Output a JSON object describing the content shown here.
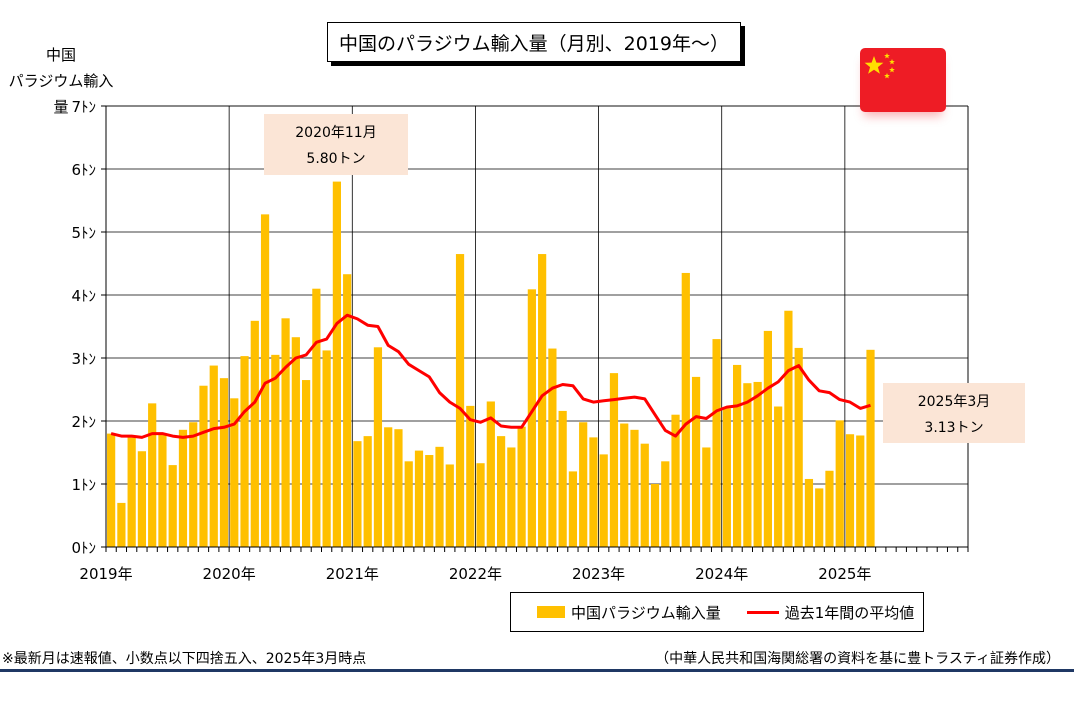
{
  "title": "中国のパラジウム輸入量（月別、2019年～）",
  "y_unit_line1": "中国",
  "y_unit_line2": "パラジウム輸入量",
  "callouts": {
    "peak": {
      "line1": "2020年11月",
      "line2": "5.80トン"
    },
    "latest": {
      "line1": "2025年3月",
      "line2": "3.13トン"
    }
  },
  "legend": {
    "bar_label": "中国パラジウム輸入量",
    "line_label": "過去1年間の平均値"
  },
  "footnote": "※最新月は速報値、小数点以下四捨五入、2025年3月時点",
  "source": "（中華人民共和国海関総署の資料を基に豊トラスティ証券作成）",
  "colors": {
    "bar": "#ffc000",
    "line": "#ff0000",
    "flag": "#ee1c25",
    "star": "#ffde00"
  },
  "chart_data": {
    "type": "bar",
    "y_tick_labels": [
      "0ﾄﾝ",
      "1ﾄﾝ",
      "2ﾄﾝ",
      "3ﾄﾝ",
      "4ﾄﾝ",
      "5ﾄﾝ",
      "6ﾄﾝ",
      "7ﾄﾝ"
    ],
    "ylim": [
      0,
      7
    ],
    "x_tick_labels": [
      "2019年",
      "2020年",
      "2021年",
      "2022年",
      "2023年",
      "2024年",
      "2025年"
    ],
    "x_range_months": 84,
    "grid": true,
    "legend_position": "bottom-right",
    "series": [
      {
        "name": "中国パラジウム輸入量",
        "type": "bar",
        "values": [
          1.8,
          0.7,
          1.75,
          1.52,
          2.28,
          1.8,
          1.3,
          1.86,
          1.98,
          2.56,
          2.88,
          2.68,
          2.36,
          3.03,
          3.59,
          5.28,
          3.05,
          3.63,
          3.33,
          2.65,
          4.1,
          3.12,
          5.8,
          4.33,
          1.68,
          1.76,
          3.17,
          1.9,
          1.87,
          1.36,
          1.53,
          1.46,
          1.59,
          1.31,
          4.65,
          2.24,
          1.33,
          2.31,
          1.76,
          1.58,
          1.91,
          4.09,
          4.65,
          3.15,
          2.16,
          1.2,
          1.98,
          1.74,
          1.47,
          2.76,
          1.96,
          1.86,
          1.64,
          1.0,
          1.36,
          2.1,
          4.35,
          2.7,
          1.58,
          3.3,
          2.2,
          2.89,
          2.6,
          2.62,
          3.43,
          2.23,
          3.75,
          3.16,
          1.08,
          0.93,
          1.21,
          2.01,
          1.79,
          1.77,
          3.13
        ]
      },
      {
        "name": "過去1年間の平均値",
        "type": "line",
        "values": [
          1.8,
          1.76,
          1.76,
          1.74,
          1.8,
          1.8,
          1.76,
          1.74,
          1.76,
          1.82,
          1.88,
          1.9,
          1.95,
          2.15,
          2.3,
          2.6,
          2.68,
          2.85,
          3.0,
          3.05,
          3.25,
          3.3,
          3.55,
          3.68,
          3.62,
          3.52,
          3.5,
          3.2,
          3.1,
          2.9,
          2.8,
          2.7,
          2.45,
          2.3,
          2.2,
          2.02,
          1.98,
          2.05,
          1.92,
          1.9,
          1.9,
          2.15,
          2.4,
          2.52,
          2.58,
          2.56,
          2.35,
          2.3,
          2.32,
          2.34,
          2.36,
          2.38,
          2.35,
          2.1,
          1.85,
          1.76,
          1.95,
          2.07,
          2.04,
          2.16,
          2.22,
          2.24,
          2.3,
          2.4,
          2.52,
          2.62,
          2.8,
          2.88,
          2.65,
          2.48,
          2.45,
          2.34,
          2.3,
          2.2,
          2.25
        ]
      }
    ]
  }
}
